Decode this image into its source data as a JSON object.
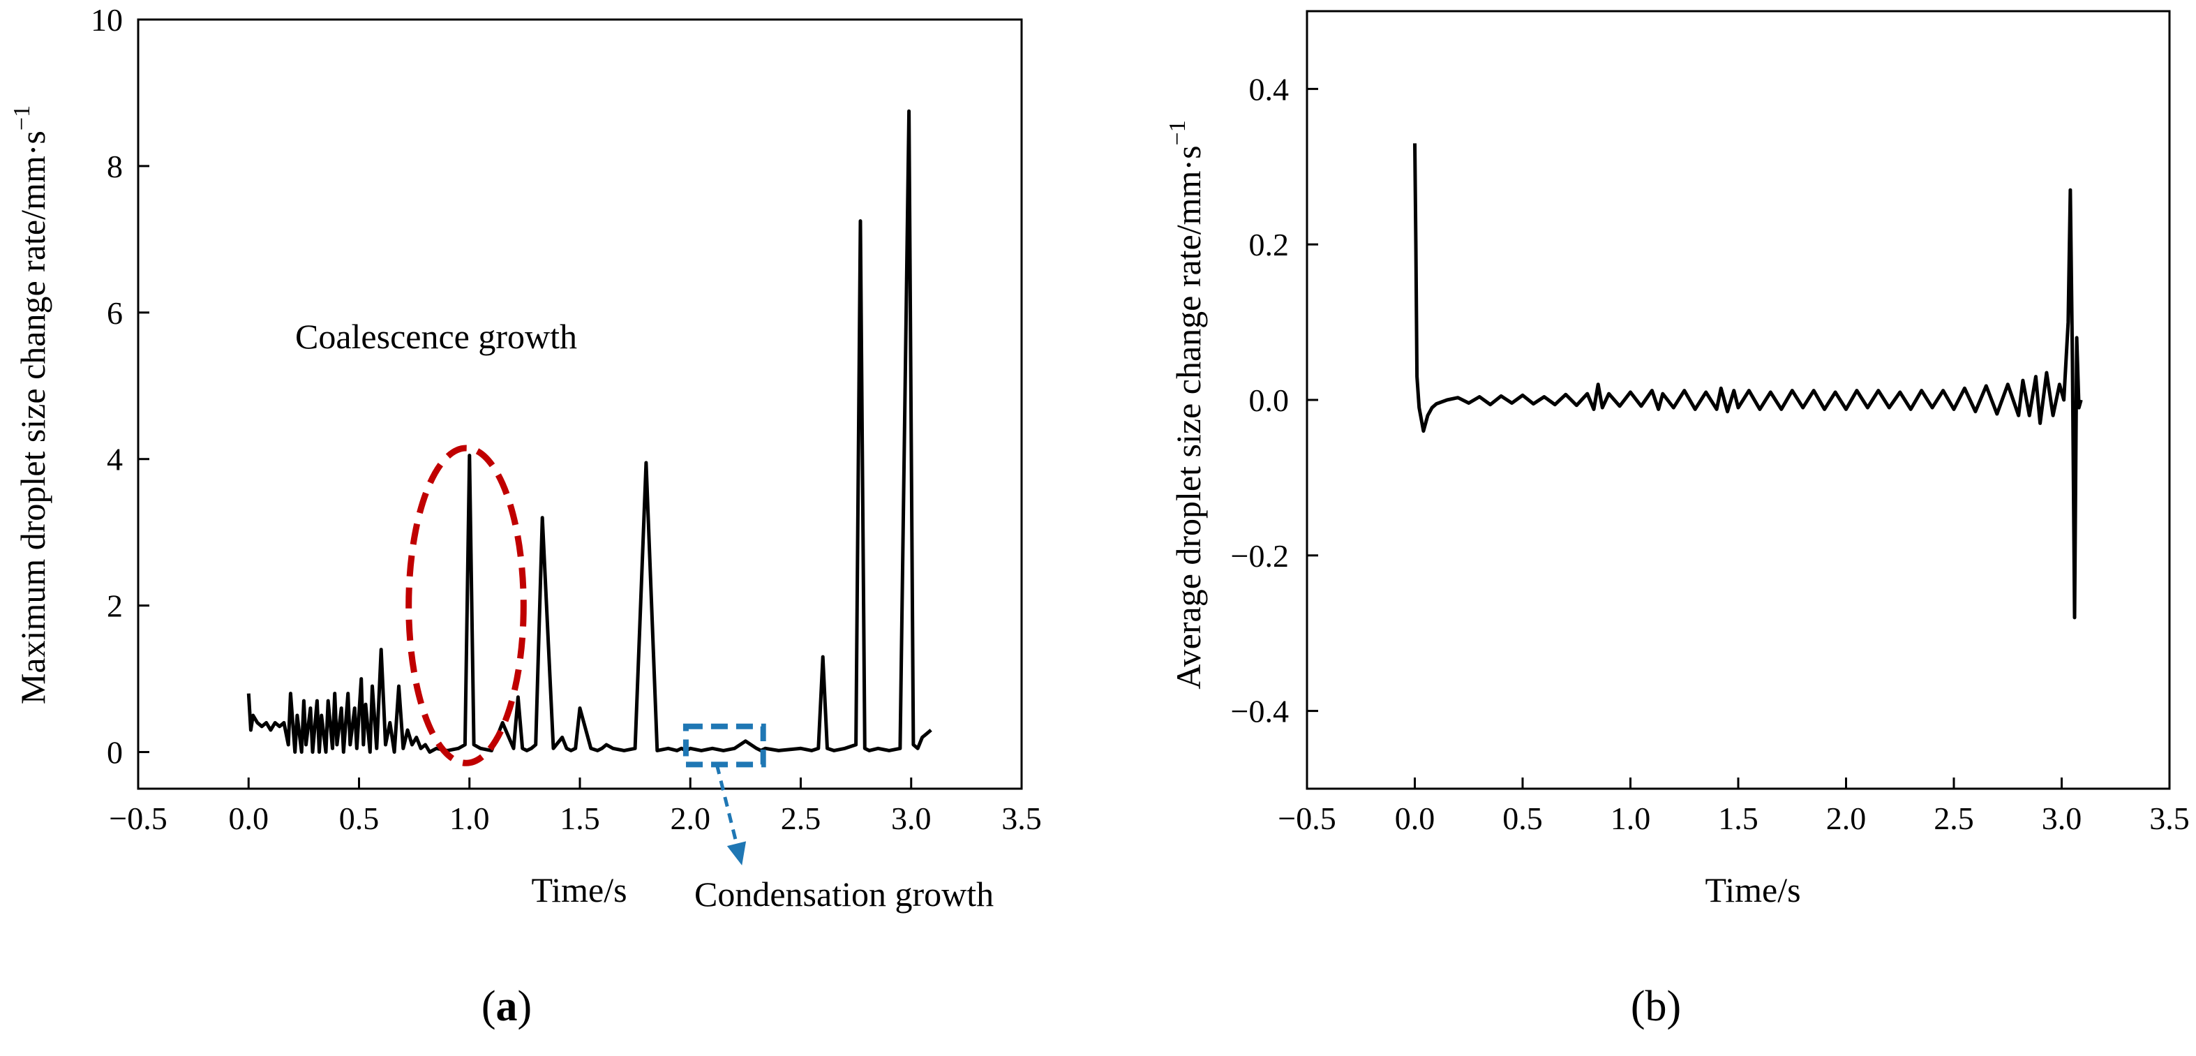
{
  "chart_data": [
    {
      "panel": "a",
      "type": "line",
      "xlabel": "Time/s",
      "ylabel": "Maximum droplet size change rate/mm·s",
      "ylabel_sup": "−1",
      "xlim": [
        -0.5,
        3.5
      ],
      "ylim": [
        -0.5,
        10
      ],
      "xticks": [
        -0.5,
        0.0,
        0.5,
        1.0,
        1.5,
        2.0,
        2.5,
        3.0,
        3.5
      ],
      "xtick_labels": [
        "−0.5",
        "0.0",
        "0.5",
        "1.0",
        "1.5",
        "2.0",
        "2.5",
        "3.0",
        "3.5"
      ],
      "yticks": [
        0,
        2,
        4,
        6,
        8,
        10
      ],
      "ytick_labels": [
        "0",
        "2",
        "4",
        "6",
        "8",
        "10"
      ],
      "annotations": [
        {
          "text": "Coalescence growth",
          "color": "#000000"
        },
        {
          "text": "Condensation growth",
          "color": "#000000"
        }
      ],
      "highlight_colors": {
        "coalescence": "#c00000",
        "condensation": "#1f77b4"
      },
      "series": [
        {
          "name": "max",
          "x": [
            0.0,
            0.01,
            0.02,
            0.04,
            0.06,
            0.08,
            0.1,
            0.12,
            0.14,
            0.16,
            0.18,
            0.19,
            0.21,
            0.22,
            0.24,
            0.25,
            0.26,
            0.28,
            0.29,
            0.31,
            0.32,
            0.33,
            0.35,
            0.36,
            0.38,
            0.39,
            0.4,
            0.42,
            0.43,
            0.45,
            0.46,
            0.48,
            0.49,
            0.51,
            0.52,
            0.53,
            0.55,
            0.56,
            0.58,
            0.6,
            0.62,
            0.64,
            0.66,
            0.68,
            0.7,
            0.72,
            0.74,
            0.76,
            0.78,
            0.8,
            0.82,
            0.85,
            0.9,
            0.95,
            0.98,
            1.0,
            1.02,
            1.05,
            1.1,
            1.15,
            1.2,
            1.22,
            1.24,
            1.26,
            1.28,
            1.3,
            1.33,
            1.38,
            1.42,
            1.44,
            1.46,
            1.48,
            1.5,
            1.55,
            1.58,
            1.6,
            1.62,
            1.65,
            1.7,
            1.75,
            1.8,
            1.85,
            1.9,
            1.94,
            1.96,
            1.98,
            2.0,
            2.05,
            2.1,
            2.15,
            2.2,
            2.25,
            2.3,
            2.32,
            2.34,
            2.4,
            2.5,
            2.55,
            2.58,
            2.6,
            2.62,
            2.65,
            2.7,
            2.75,
            2.77,
            2.79,
            2.81,
            2.85,
            2.9,
            2.95,
            2.99,
            3.01,
            3.03,
            3.05,
            3.07,
            3.09
          ],
          "y": [
            0.8,
            0.3,
            0.5,
            0.4,
            0.35,
            0.4,
            0.3,
            0.4,
            0.35,
            0.4,
            0.1,
            0.8,
            0.0,
            0.5,
            0.0,
            0.7,
            0.1,
            0.6,
            0.0,
            0.7,
            0.0,
            0.5,
            0.0,
            0.7,
            0.05,
            0.8,
            0.1,
            0.6,
            0.0,
            0.8,
            0.1,
            0.6,
            0.05,
            1.0,
            0.1,
            0.65,
            0.0,
            0.9,
            0.05,
            1.4,
            0.1,
            0.4,
            0.0,
            0.9,
            0.05,
            0.3,
            0.1,
            0.2,
            0.05,
            0.1,
            0.0,
            0.05,
            0.02,
            0.05,
            0.1,
            4.05,
            0.1,
            0.05,
            0.02,
            0.4,
            0.05,
            0.75,
            0.05,
            0.02,
            0.05,
            0.1,
            3.2,
            0.05,
            0.2,
            0.05,
            0.02,
            0.05,
            0.6,
            0.05,
            0.02,
            0.05,
            0.1,
            0.05,
            0.02,
            0.05,
            3.95,
            0.02,
            0.05,
            0.02,
            0.05,
            0.02,
            0.05,
            0.02,
            0.05,
            0.02,
            0.05,
            0.15,
            0.05,
            0.02,
            0.05,
            0.02,
            0.05,
            0.02,
            0.05,
            1.3,
            0.05,
            0.02,
            0.05,
            0.1,
            7.25,
            0.05,
            0.02,
            0.05,
            0.02,
            0.05,
            8.75,
            0.1,
            0.05,
            0.2,
            0.25,
            0.3
          ]
        }
      ]
    },
    {
      "panel": "b",
      "type": "line",
      "xlabel": "Time/s",
      "ylabel": "Average droplet size change rate/mm·s",
      "ylabel_sup": "−1",
      "xlim": [
        -0.5,
        3.5
      ],
      "ylim": [
        -0.5,
        0.5
      ],
      "xticks": [
        -0.5,
        0.0,
        0.5,
        1.0,
        1.5,
        2.0,
        2.5,
        3.0,
        3.5
      ],
      "xtick_labels": [
        "−0.5",
        "0.0",
        "0.5",
        "1.0",
        "1.5",
        "2.0",
        "2.5",
        "3.0",
        "3.5"
      ],
      "yticks": [
        -0.4,
        -0.2,
        0.0,
        0.2,
        0.4
      ],
      "ytick_labels": [
        "−0.4",
        "−0.2",
        "0.0",
        "0.2",
        "0.4"
      ],
      "series": [
        {
          "name": "average",
          "x": [
            0.0,
            0.005,
            0.01,
            0.02,
            0.04,
            0.06,
            0.08,
            0.1,
            0.15,
            0.2,
            0.25,
            0.3,
            0.35,
            0.4,
            0.45,
            0.5,
            0.55,
            0.6,
            0.65,
            0.7,
            0.75,
            0.8,
            0.83,
            0.85,
            0.87,
            0.9,
            0.95,
            1.0,
            1.05,
            1.1,
            1.13,
            1.15,
            1.2,
            1.25,
            1.3,
            1.35,
            1.4,
            1.42,
            1.45,
            1.48,
            1.5,
            1.55,
            1.6,
            1.65,
            1.7,
            1.75,
            1.8,
            1.85,
            1.9,
            1.95,
            2.0,
            2.05,
            2.1,
            2.15,
            2.2,
            2.25,
            2.3,
            2.35,
            2.4,
            2.45,
            2.5,
            2.55,
            2.6,
            2.65,
            2.7,
            2.75,
            2.8,
            2.82,
            2.85,
            2.88,
            2.9,
            2.93,
            2.96,
            2.99,
            3.01,
            3.03,
            3.04,
            3.05,
            3.06,
            3.07,
            3.08,
            3.09
          ],
          "y": [
            0.33,
            0.2,
            0.03,
            -0.01,
            -0.04,
            -0.02,
            -0.01,
            -0.005,
            0.0,
            0.003,
            -0.004,
            0.004,
            -0.006,
            0.005,
            -0.004,
            0.006,
            -0.005,
            0.004,
            -0.006,
            0.007,
            -0.007,
            0.008,
            -0.012,
            0.02,
            -0.01,
            0.008,
            -0.008,
            0.01,
            -0.008,
            0.012,
            -0.012,
            0.008,
            -0.01,
            0.012,
            -0.012,
            0.01,
            -0.012,
            0.015,
            -0.015,
            0.012,
            -0.01,
            0.012,
            -0.012,
            0.01,
            -0.012,
            0.012,
            -0.01,
            0.012,
            -0.012,
            0.01,
            -0.012,
            0.012,
            -0.01,
            0.012,
            -0.01,
            0.01,
            -0.012,
            0.012,
            -0.01,
            0.012,
            -0.012,
            0.015,
            -0.015,
            0.018,
            -0.018,
            0.02,
            -0.02,
            0.025,
            -0.02,
            0.03,
            -0.03,
            0.035,
            -0.02,
            0.02,
            0.0,
            0.1,
            0.27,
            0.05,
            -0.28,
            0.08,
            -0.01,
            0.0
          ]
        }
      ]
    }
  ],
  "panel_labels": {
    "a_open": "(",
    "a_letter": "a",
    "a_close": ")",
    "b": "(b)"
  }
}
